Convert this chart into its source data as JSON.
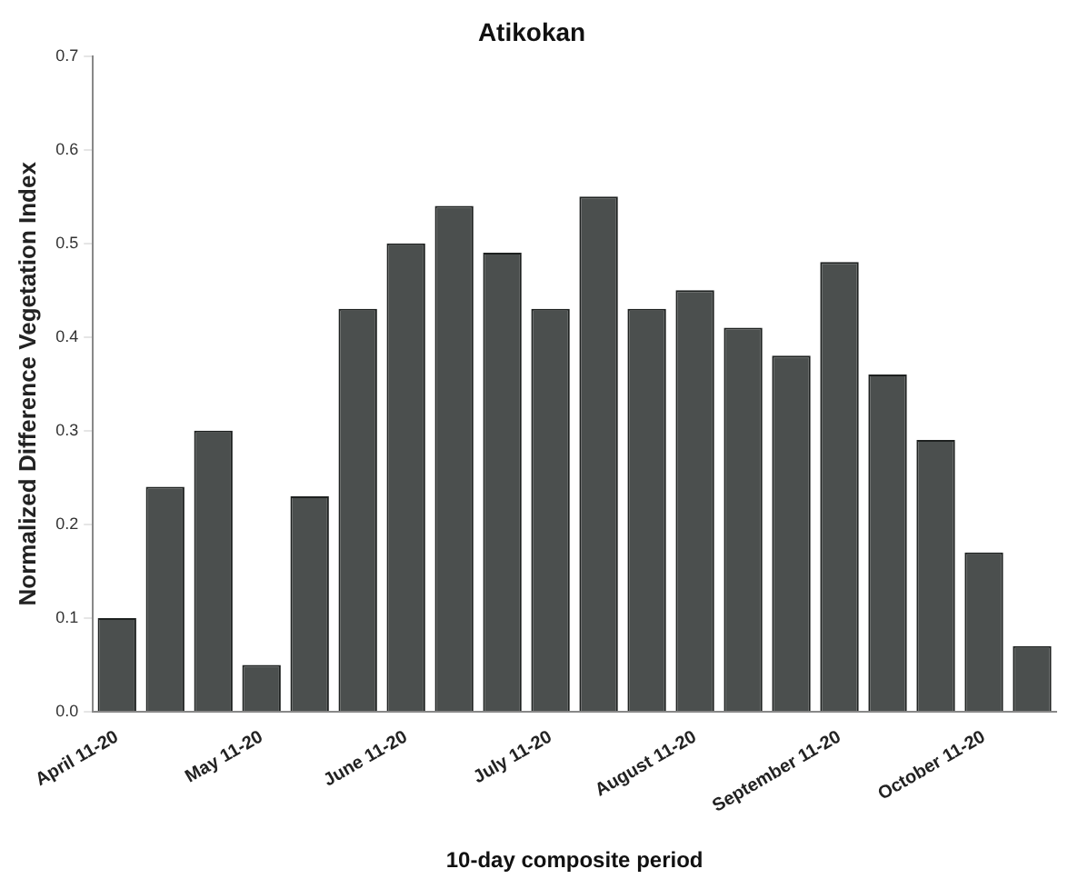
{
  "chart_data": {
    "type": "bar",
    "title": "Atikokan",
    "xlabel": "10-day composite period",
    "ylabel": "Normalized Difference Vegetation Index",
    "categories": [
      "April 11-20",
      null,
      null,
      "May 11-20",
      null,
      null,
      "June 11-20",
      null,
      null,
      "July 11-20",
      null,
      null,
      "August 11-20",
      null,
      null,
      "September 11-20",
      null,
      null,
      "October 11-20",
      null
    ],
    "values": [
      0.1,
      0.24,
      0.3,
      0.05,
      0.23,
      0.43,
      0.5,
      0.54,
      0.49,
      0.43,
      0.55,
      0.43,
      0.45,
      0.41,
      0.38,
      0.48,
      0.36,
      0.29,
      0.17,
      0.07
    ],
    "color": "#4b4f4e",
    "ylim": [
      0,
      0.7
    ],
    "yticks": [
      {
        "value": 0,
        "label": "0.0"
      },
      0.1,
      0.2,
      0.3,
      0.4,
      0.5,
      0.6,
      0.7
    ],
    "grid": false
  }
}
